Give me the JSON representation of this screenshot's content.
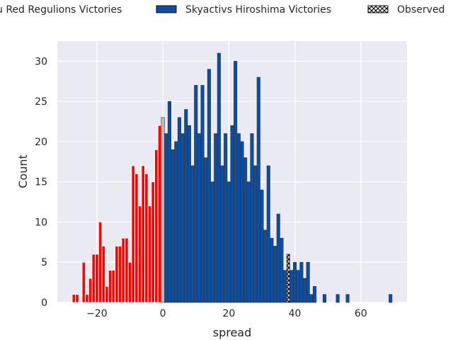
{
  "chart_data": {
    "type": "bar",
    "xlabel": "spread",
    "ylabel": "Count",
    "xlim": [
      -32,
      74
    ],
    "ylim": [
      0,
      32.5
    ],
    "xticks": [
      -20,
      0,
      20,
      40,
      60
    ],
    "xtick_labels": [
      "−20",
      "0",
      "20",
      "40",
      "60"
    ],
    "yticks": [
      0,
      5,
      10,
      15,
      20,
      25,
      30
    ],
    "ytick_labels": [
      "0",
      "5",
      "10",
      "15",
      "20",
      "25",
      "30"
    ],
    "grid": true,
    "legend_placement": "top (above plot)",
    "colors": {
      "background": "#eaeaf2",
      "grid": "#ffffff",
      "red": "#ff0000",
      "blue": "#0b4ea2",
      "observed": "#bdbdbd",
      "edge": "#333333"
    },
    "series": [
      {
        "name": "u Red Regulions Victories",
        "color": "#ff0000",
        "x": [
          -27,
          -26,
          -24,
          -23,
          -22,
          -21,
          -20,
          -19,
          -18,
          -17,
          -16,
          -15,
          -14,
          -13,
          -12,
          -11,
          -10,
          -9,
          -8,
          -7,
          -6,
          -5,
          -4,
          -3,
          -2,
          -1
        ],
        "values": [
          1,
          1,
          5,
          1,
          3,
          6,
          6,
          10,
          7,
          2,
          4,
          4,
          7,
          7,
          8,
          8,
          5,
          17,
          16,
          12,
          17,
          16,
          12,
          15,
          19,
          22
        ]
      },
      {
        "name": "Skyactivs Hiroshima Victories",
        "color": "#0b4ea2",
        "x": [
          1,
          2,
          3,
          4,
          5,
          6,
          7,
          8,
          9,
          10,
          11,
          12,
          13,
          14,
          15,
          16,
          17,
          18,
          19,
          20,
          21,
          22,
          23,
          24,
          25,
          26,
          27,
          28,
          29,
          30,
          31,
          32,
          33,
          34,
          35,
          36,
          37,
          38,
          39,
          40,
          41,
          42,
          43,
          44,
          45,
          46,
          49,
          53,
          56,
          69
        ],
        "values": [
          21,
          25,
          19,
          20,
          23,
          21,
          24,
          22,
          17,
          27,
          21,
          27,
          18,
          29,
          15,
          21,
          31,
          17,
          21,
          15,
          22,
          30,
          21,
          20,
          18,
          15,
          21,
          17,
          28,
          14,
          9,
          17,
          8,
          7,
          11,
          8,
          4,
          4,
          4,
          5,
          4,
          5,
          3,
          5,
          1,
          2,
          1,
          1,
          1,
          1
        ]
      },
      {
        "name": "Observed",
        "color": "#bdbdbd",
        "hatch": "x",
        "x": [
          0,
          38
        ],
        "values": [
          23,
          6
        ]
      }
    ]
  }
}
